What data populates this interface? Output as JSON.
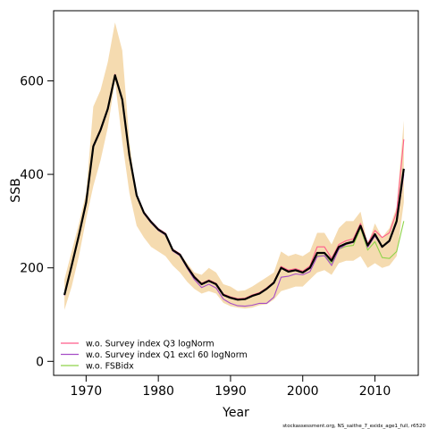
{
  "chart_data": {
    "type": "line",
    "xlabel": "Year",
    "ylabel": "SSB",
    "xlim": [
      1965.5,
      2016
    ],
    "ylim": [
      -30,
      750
    ],
    "x_ticks": [
      1970,
      1980,
      1990,
      2000,
      2010
    ],
    "y_ticks": [
      0,
      200,
      400,
      600
    ],
    "grid": false,
    "legend_position": "bottom-left",
    "footer": "stockassessment.org, NS_saithe_7_exidx_age1_full, r6520",
    "colors": {
      "band": "#f5dbb0",
      "base": "#000000",
      "q3": "#ff5c8a",
      "q1": "#a64dc6",
      "fsb": "#8fd44a"
    },
    "x": [
      1967,
      1968,
      1969,
      1970,
      1971,
      1972,
      1973,
      1974,
      1975,
      1976,
      1977,
      1978,
      1979,
      1980,
      1981,
      1982,
      1983,
      1984,
      1985,
      1986,
      1987,
      1988,
      1989,
      1990,
      1991,
      1992,
      1993,
      1994,
      1995,
      1996,
      1997,
      1998,
      1999,
      2000,
      2001,
      2002,
      2003,
      2004,
      2005,
      2006,
      2007,
      2008,
      2009,
      2010,
      2011,
      2012,
      2013,
      2014
    ],
    "band": {
      "upper": [
        175,
        235,
        295,
        360,
        545,
        580,
        640,
        725,
        665,
        470,
        350,
        320,
        300,
        285,
        270,
        240,
        230,
        210,
        190,
        185,
        200,
        190,
        165,
        160,
        150,
        152,
        160,
        170,
        180,
        190,
        235,
        225,
        230,
        225,
        235,
        275,
        275,
        250,
        285,
        300,
        300,
        320,
        250,
        295,
        265,
        285,
        330,
        515
      ],
      "lower": [
        110,
        160,
        225,
        305,
        375,
        430,
        500,
        600,
        470,
        360,
        290,
        265,
        245,
        235,
        225,
        205,
        190,
        170,
        155,
        145,
        150,
        145,
        125,
        118,
        115,
        113,
        115,
        120,
        122,
        132,
        150,
        155,
        160,
        160,
        175,
        190,
        195,
        185,
        210,
        215,
        215,
        225,
        200,
        210,
        200,
        205,
        225,
        340
      ]
    },
    "series": [
      {
        "key": "base",
        "values": [
          142,
          205,
          270,
          340,
          460,
          495,
          540,
          612,
          560,
          440,
          355,
          318,
          298,
          282,
          272,
          238,
          228,
          202,
          180,
          165,
          172,
          165,
          142,
          136,
          132,
          133,
          140,
          145,
          155,
          168,
          200,
          192,
          195,
          190,
          200,
          232,
          232,
          215,
          245,
          252,
          256,
          290,
          248,
          272,
          245,
          258,
          300,
          412
        ]
      },
      {
        "key": "q3",
        "name": "w.o. Survey index Q3 logNorm",
        "values": [
          143,
          207,
          272,
          342,
          462,
          497,
          542,
          614,
          562,
          442,
          357,
          320,
          300,
          284,
          274,
          240,
          230,
          204,
          182,
          167,
          174,
          167,
          144,
          138,
          134,
          135,
          142,
          147,
          157,
          170,
          203,
          195,
          198,
          193,
          204,
          245,
          245,
          220,
          250,
          258,
          262,
          295,
          252,
          280,
          265,
          275,
          320,
          475
        ]
      },
      {
        "key": "q1",
        "name": "w.o. Survey index Q1 excl 60 logNorm",
        "values": [
          141,
          204,
          269,
          339,
          458,
          493,
          538,
          610,
          558,
          438,
          353,
          316,
          296,
          280,
          270,
          236,
          226,
          199,
          175,
          158,
          165,
          157,
          133,
          124,
          119,
          118,
          120,
          124,
          124,
          137,
          180,
          182,
          187,
          185,
          192,
          224,
          226,
          205,
          240,
          250,
          254,
          288,
          244,
          268,
          245,
          256,
          296,
          400
        ]
      },
      {
        "key": "fsb",
        "name": "w.o. FSBidx",
        "values": [
          142,
          205,
          270,
          340,
          460,
          495,
          540,
          612,
          560,
          440,
          355,
          318,
          298,
          282,
          272,
          238,
          228,
          202,
          180,
          165,
          172,
          165,
          142,
          136,
          132,
          133,
          140,
          146,
          155,
          168,
          200,
          192,
          195,
          190,
          200,
          226,
          226,
          210,
          240,
          246,
          248,
          285,
          238,
          256,
          222,
          220,
          235,
          300
        ]
      }
    ]
  }
}
